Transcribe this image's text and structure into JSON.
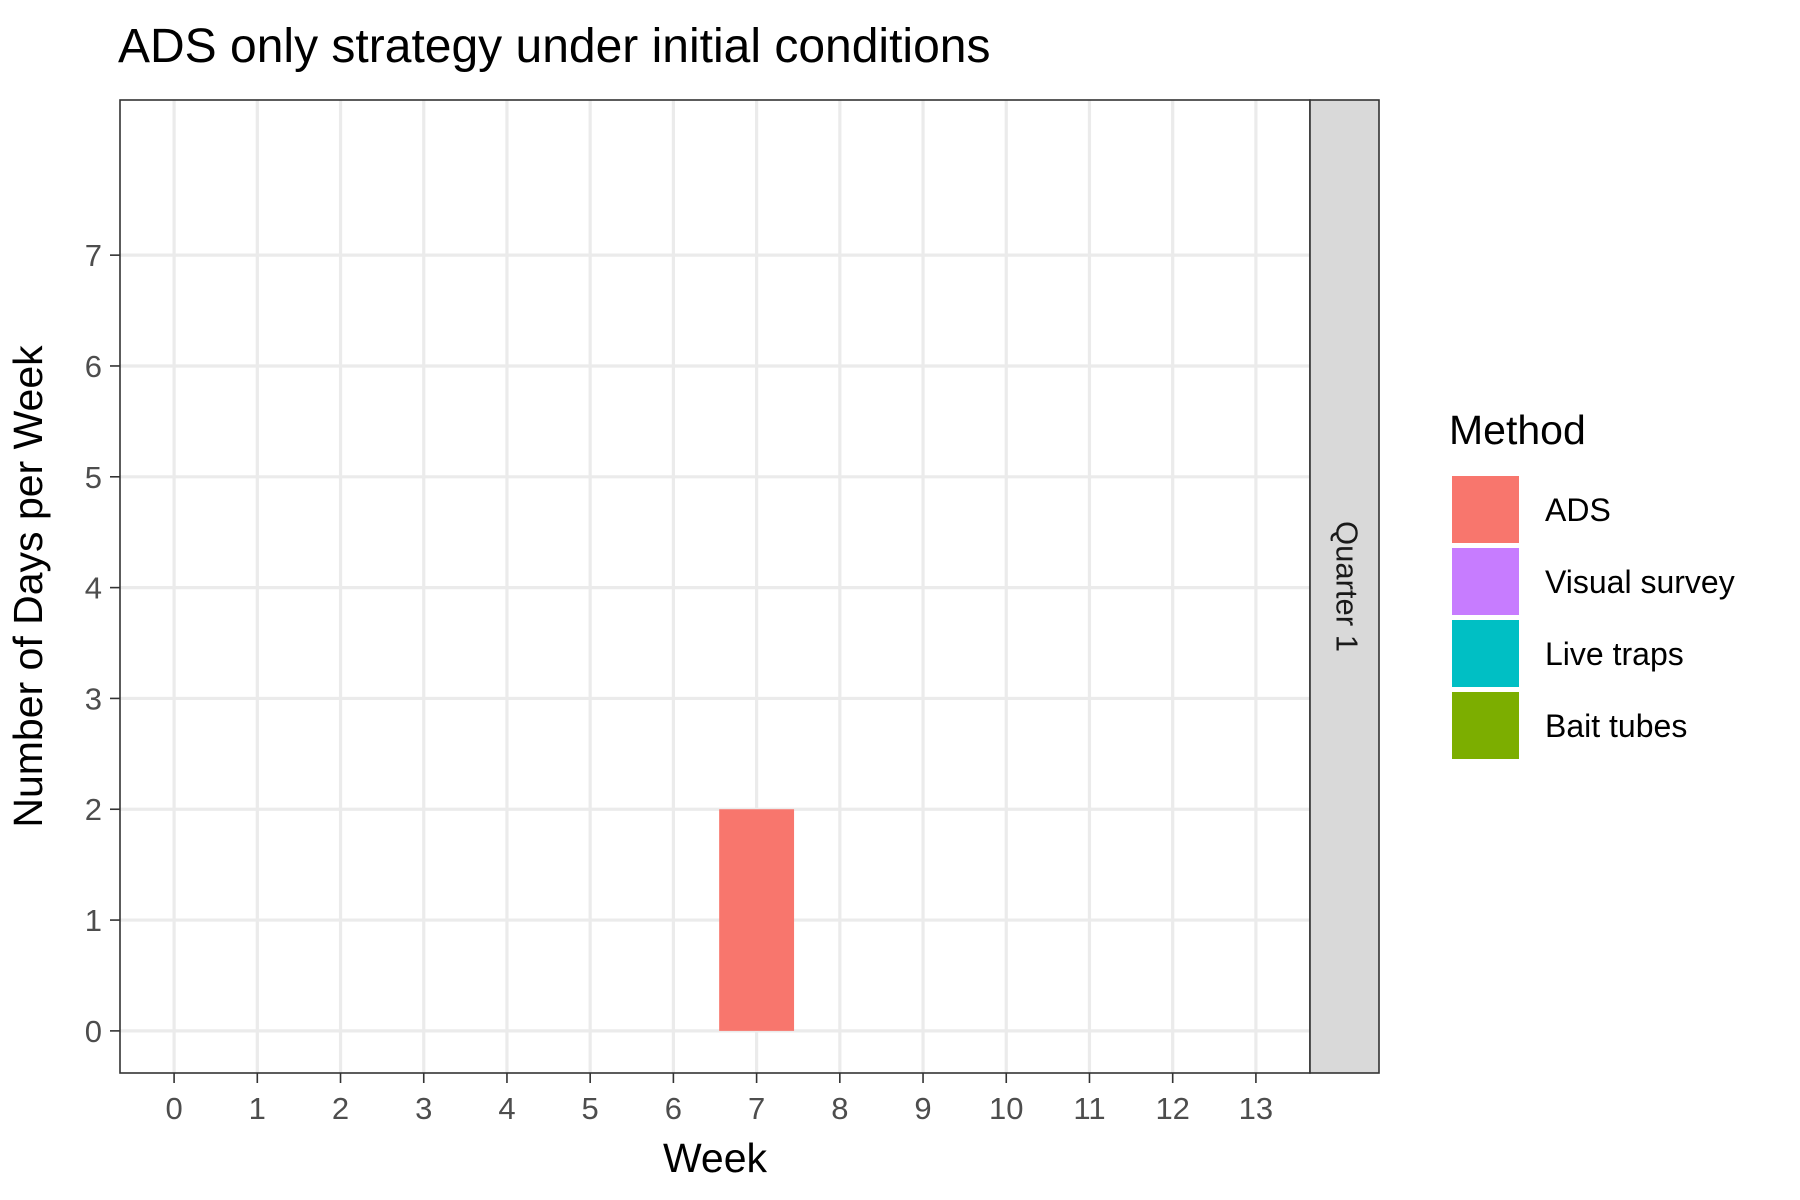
{
  "chart_data": {
    "type": "bar",
    "title": "ADS only strategy under initial conditions",
    "xlabel": "Week",
    "ylabel": "Number of Days per Week",
    "facet_label": "Quarter 1",
    "x_ticks": [
      "0",
      "1",
      "2",
      "3",
      "4",
      "5",
      "6",
      "7",
      "8",
      "9",
      "10",
      "11",
      "12",
      "13"
    ],
    "y_ticks": [
      "0",
      "1",
      "2",
      "3",
      "4",
      "5",
      "6",
      "7"
    ],
    "xlim": [
      -0.65,
      13.65
    ],
    "ylim": [
      -0.38,
      8.4
    ],
    "grid": true,
    "legend": {
      "title": "Method",
      "placement": "right",
      "entries": [
        {
          "label": "ADS",
          "color": "#F8766D"
        },
        {
          "label": "Visual survey",
          "color": "#C77CFF"
        },
        {
          "label": "Live traps",
          "color": "#00BFC4"
        },
        {
          "label": "Bait tubes",
          "color": "#7CAE00"
        }
      ]
    },
    "bars": [
      {
        "week": 7,
        "days": 2,
        "method": "ADS",
        "color": "#F8766D"
      }
    ]
  }
}
